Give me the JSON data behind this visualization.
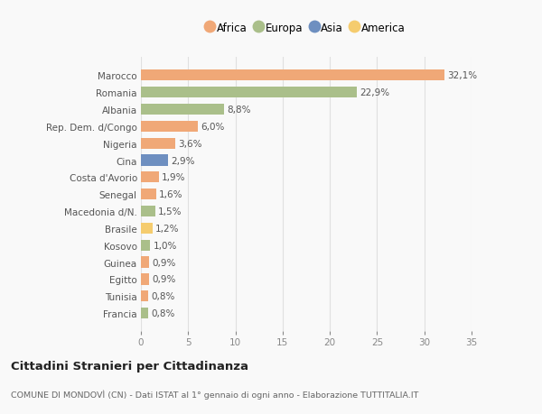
{
  "countries": [
    "Marocco",
    "Romania",
    "Albania",
    "Rep. Dem. d/Congo",
    "Nigeria",
    "Cina",
    "Costa d'Avorio",
    "Senegal",
    "Macedonia d/N.",
    "Brasile",
    "Kosovo",
    "Guinea",
    "Egitto",
    "Tunisia",
    "Francia"
  ],
  "values": [
    32.1,
    22.9,
    8.8,
    6.0,
    3.6,
    2.9,
    1.9,
    1.6,
    1.5,
    1.2,
    1.0,
    0.9,
    0.9,
    0.8,
    0.8
  ],
  "labels": [
    "32,1%",
    "22,9%",
    "8,8%",
    "6,0%",
    "3,6%",
    "2,9%",
    "1,9%",
    "1,6%",
    "1,5%",
    "1,2%",
    "1,0%",
    "0,9%",
    "0,9%",
    "0,8%",
    "0,8%"
  ],
  "continents": [
    "Africa",
    "Europa",
    "Europa",
    "Africa",
    "Africa",
    "Asia",
    "Africa",
    "Africa",
    "Europa",
    "America",
    "Europa",
    "Africa",
    "Africa",
    "Africa",
    "Europa"
  ],
  "continent_colors": {
    "Africa": "#F0A877",
    "Europa": "#AABF8A",
    "Asia": "#6E8FC0",
    "America": "#F5CC6E"
  },
  "legend_order": [
    "Africa",
    "Europa",
    "Asia",
    "America"
  ],
  "title": "Cittadini Stranieri per Cittadinanza",
  "subtitle": "COMUNE DI MONDOVÌ (CN) - Dati ISTAT al 1° gennaio di ogni anno - Elaborazione TUTTITALIA.IT",
  "xlim": [
    0,
    35
  ],
  "xticks": [
    0,
    5,
    10,
    15,
    20,
    25,
    30,
    35
  ],
  "background_color": "#f9f9f9",
  "grid_color": "#e0e0e0",
  "bar_height": 0.65
}
